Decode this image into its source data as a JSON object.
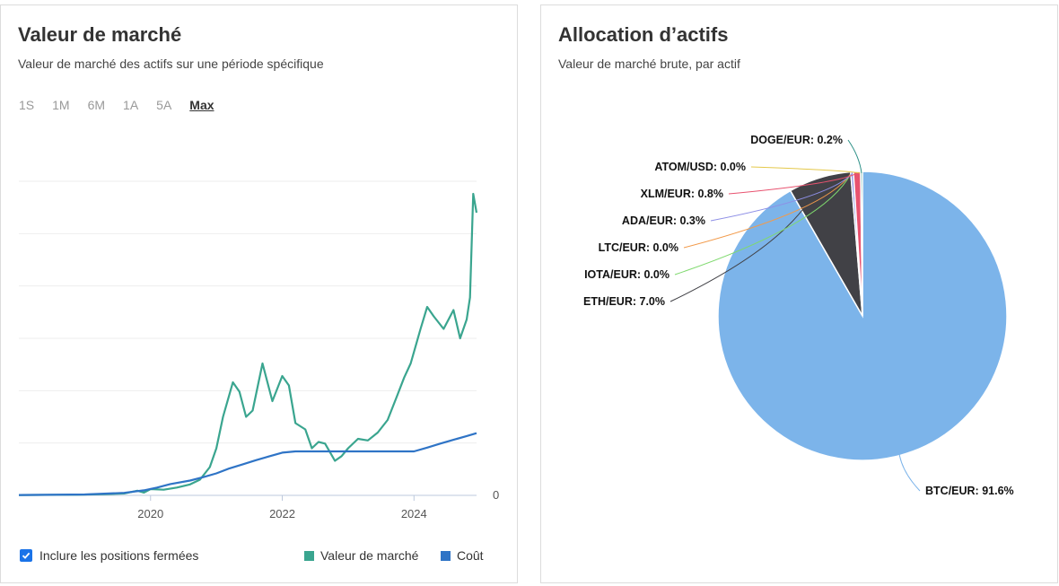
{
  "left_card": {
    "title": "Valeur de marché",
    "subtitle": "Valeur de marché des actifs sur une période spécifique",
    "periods": [
      "1S",
      "1M",
      "6M",
      "1A",
      "5A",
      "Max"
    ],
    "active_period": "Max",
    "closed_positions_label": "Inclure les positions fermées",
    "closed_positions_checked": true
  },
  "right_card": {
    "title": "Allocation d’actifs",
    "subtitle": "Valeur de marché brute, par actif"
  },
  "colors": {
    "market_value": "#3aa58f",
    "cost": "#2f74c6",
    "btc": "#7cb4ea",
    "eth": "#414146",
    "ada": "#8e8fe6",
    "xlm": "#e8526f",
    "atom": "#e4c84a",
    "doge": "#2b8f86",
    "ltc": "#f29a4a",
    "iota": "#7fd96e"
  },
  "chart_data": [
    {
      "type": "line",
      "title": "Valeur de marché",
      "x_ticks": [
        "2020",
        "2022",
        "2024"
      ],
      "y_ticks": [
        "0"
      ],
      "xlim": [
        2018.0,
        2024.95
      ],
      "ylim": [
        0,
        100
      ],
      "series": [
        {
          "name": "Valeur de marché",
          "x": [
            2018.0,
            2018.9,
            2019.3,
            2019.6,
            2019.8,
            2019.9,
            2020.0,
            2020.2,
            2020.4,
            2020.6,
            2020.75,
            2020.9,
            2021.0,
            2021.1,
            2021.25,
            2021.35,
            2021.45,
            2021.55,
            2021.7,
            2021.85,
            2022.0,
            2022.1,
            2022.2,
            2022.35,
            2022.45,
            2022.55,
            2022.65,
            2022.8,
            2022.9,
            2023.0,
            2023.15,
            2023.3,
            2023.45,
            2023.6,
            2023.75,
            2023.85,
            2023.95,
            2024.1,
            2024.2,
            2024.3,
            2024.45,
            2024.6,
            2024.7,
            2024.8,
            2024.85,
            2024.9,
            2024.95
          ],
          "values": [
            0.1,
            0.2,
            0.4,
            0.6,
            1.5,
            0.9,
            2.0,
            1.8,
            2.5,
            3.5,
            5.0,
            9.0,
            15.0,
            25.0,
            36.0,
            33.0,
            25.0,
            27.0,
            42.0,
            30.0,
            38.0,
            35.0,
            23.0,
            21.0,
            15.0,
            17.0,
            16.5,
            11.0,
            12.5,
            15.0,
            18.0,
            17.5,
            20.0,
            24.0,
            32.0,
            37.5,
            42.0,
            53.0,
            60.0,
            57.0,
            53.0,
            59.0,
            50.0,
            56.0,
            63.0,
            96.0,
            90.0
          ]
        },
        {
          "name": "Coût",
          "x": [
            2018.0,
            2019.0,
            2019.6,
            2019.9,
            2020.1,
            2020.3,
            2020.6,
            2020.8,
            2021.0,
            2021.2,
            2021.4,
            2021.6,
            2021.8,
            2022.0,
            2022.2,
            2022.5,
            2023.0,
            2023.5,
            2024.0,
            2024.2,
            2024.4,
            2024.6,
            2024.8,
            2024.95
          ],
          "values": [
            0.1,
            0.3,
            0.8,
            1.6,
            2.5,
            3.6,
            4.7,
            5.8,
            7.0,
            8.6,
            9.9,
            11.2,
            12.4,
            13.6,
            14.0,
            14.0,
            14.0,
            14.0,
            14.0,
            15.2,
            16.5,
            17.7,
            18.9,
            19.8
          ]
        }
      ]
    },
    {
      "type": "pie",
      "title": "Allocation d’actifs",
      "categories": [
        "BTC/EUR",
        "ETH/EUR",
        "IOTA/EUR",
        "LTC/EUR",
        "ADA/EUR",
        "XLM/EUR",
        "ATOM/USD",
        "DOGE/EUR"
      ],
      "values": [
        91.6,
        7.0,
        0.0,
        0.0,
        0.3,
        0.8,
        0.0,
        0.2
      ],
      "labels": [
        "BTC/EUR: 91.6%",
        "ETH/EUR: 7.0%",
        "IOTA/EUR: 0.0%",
        "LTC/EUR: 0.0%",
        "ADA/EUR: 0.3%",
        "XLM/EUR: 0.8%",
        "ATOM/USD: 0.0%",
        "DOGE/EUR: 0.2%"
      ]
    }
  ]
}
